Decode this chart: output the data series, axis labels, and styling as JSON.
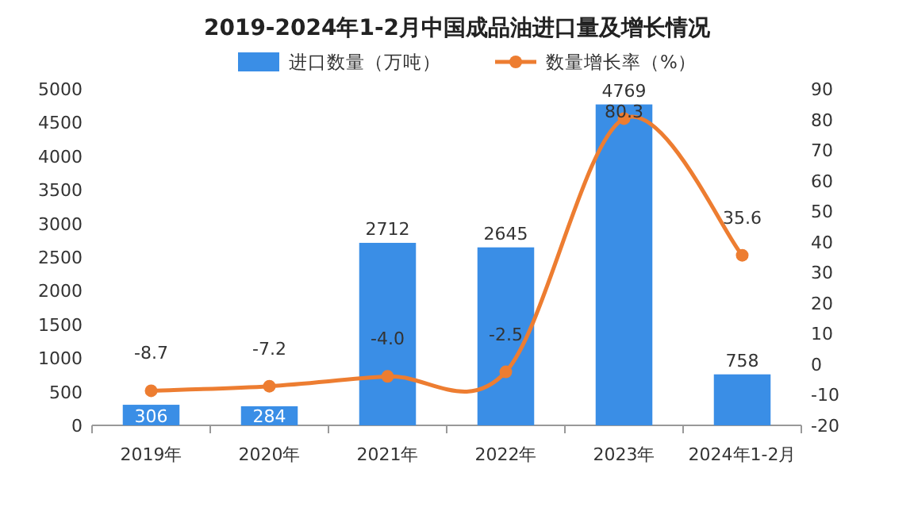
{
  "chart_data": {
    "type": "bar",
    "title": "2019-2024年1-2月中国成品油进口量及增长情况",
    "categories": [
      "2019年",
      "2020年",
      "2021年",
      "2022年",
      "2023年",
      "2024年1-2月"
    ],
    "series": [
      {
        "name": "进口数量（万吨）",
        "color": "#3a8ee6",
        "values": [
          306,
          284,
          2712,
          2645,
          4769,
          758
        ]
      },
      {
        "name": "数量增长率（%）",
        "type": "line",
        "axis": "y2",
        "color": "#ed7d31",
        "values": [
          -8.7,
          -7.2,
          -4.0,
          -2.5,
          80.3,
          35.6
        ],
        "value_labels": [
          "-8.7",
          "-7.2",
          "-4.0",
          "-2.5",
          "80.3",
          "35.6"
        ]
      }
    ],
    "ylim": [
      0,
      5000
    ],
    "yticks": [
      0,
      500,
      1000,
      1500,
      2000,
      2500,
      3000,
      3500,
      4000,
      4500,
      5000
    ],
    "y2lim": [
      -20,
      90
    ],
    "y2ticks": [
      -20,
      -10,
      0,
      10,
      20,
      30,
      40,
      50,
      60,
      70,
      80,
      90
    ],
    "legend": "top",
    "data_labels": true,
    "marker": "circle",
    "grid": false
  }
}
